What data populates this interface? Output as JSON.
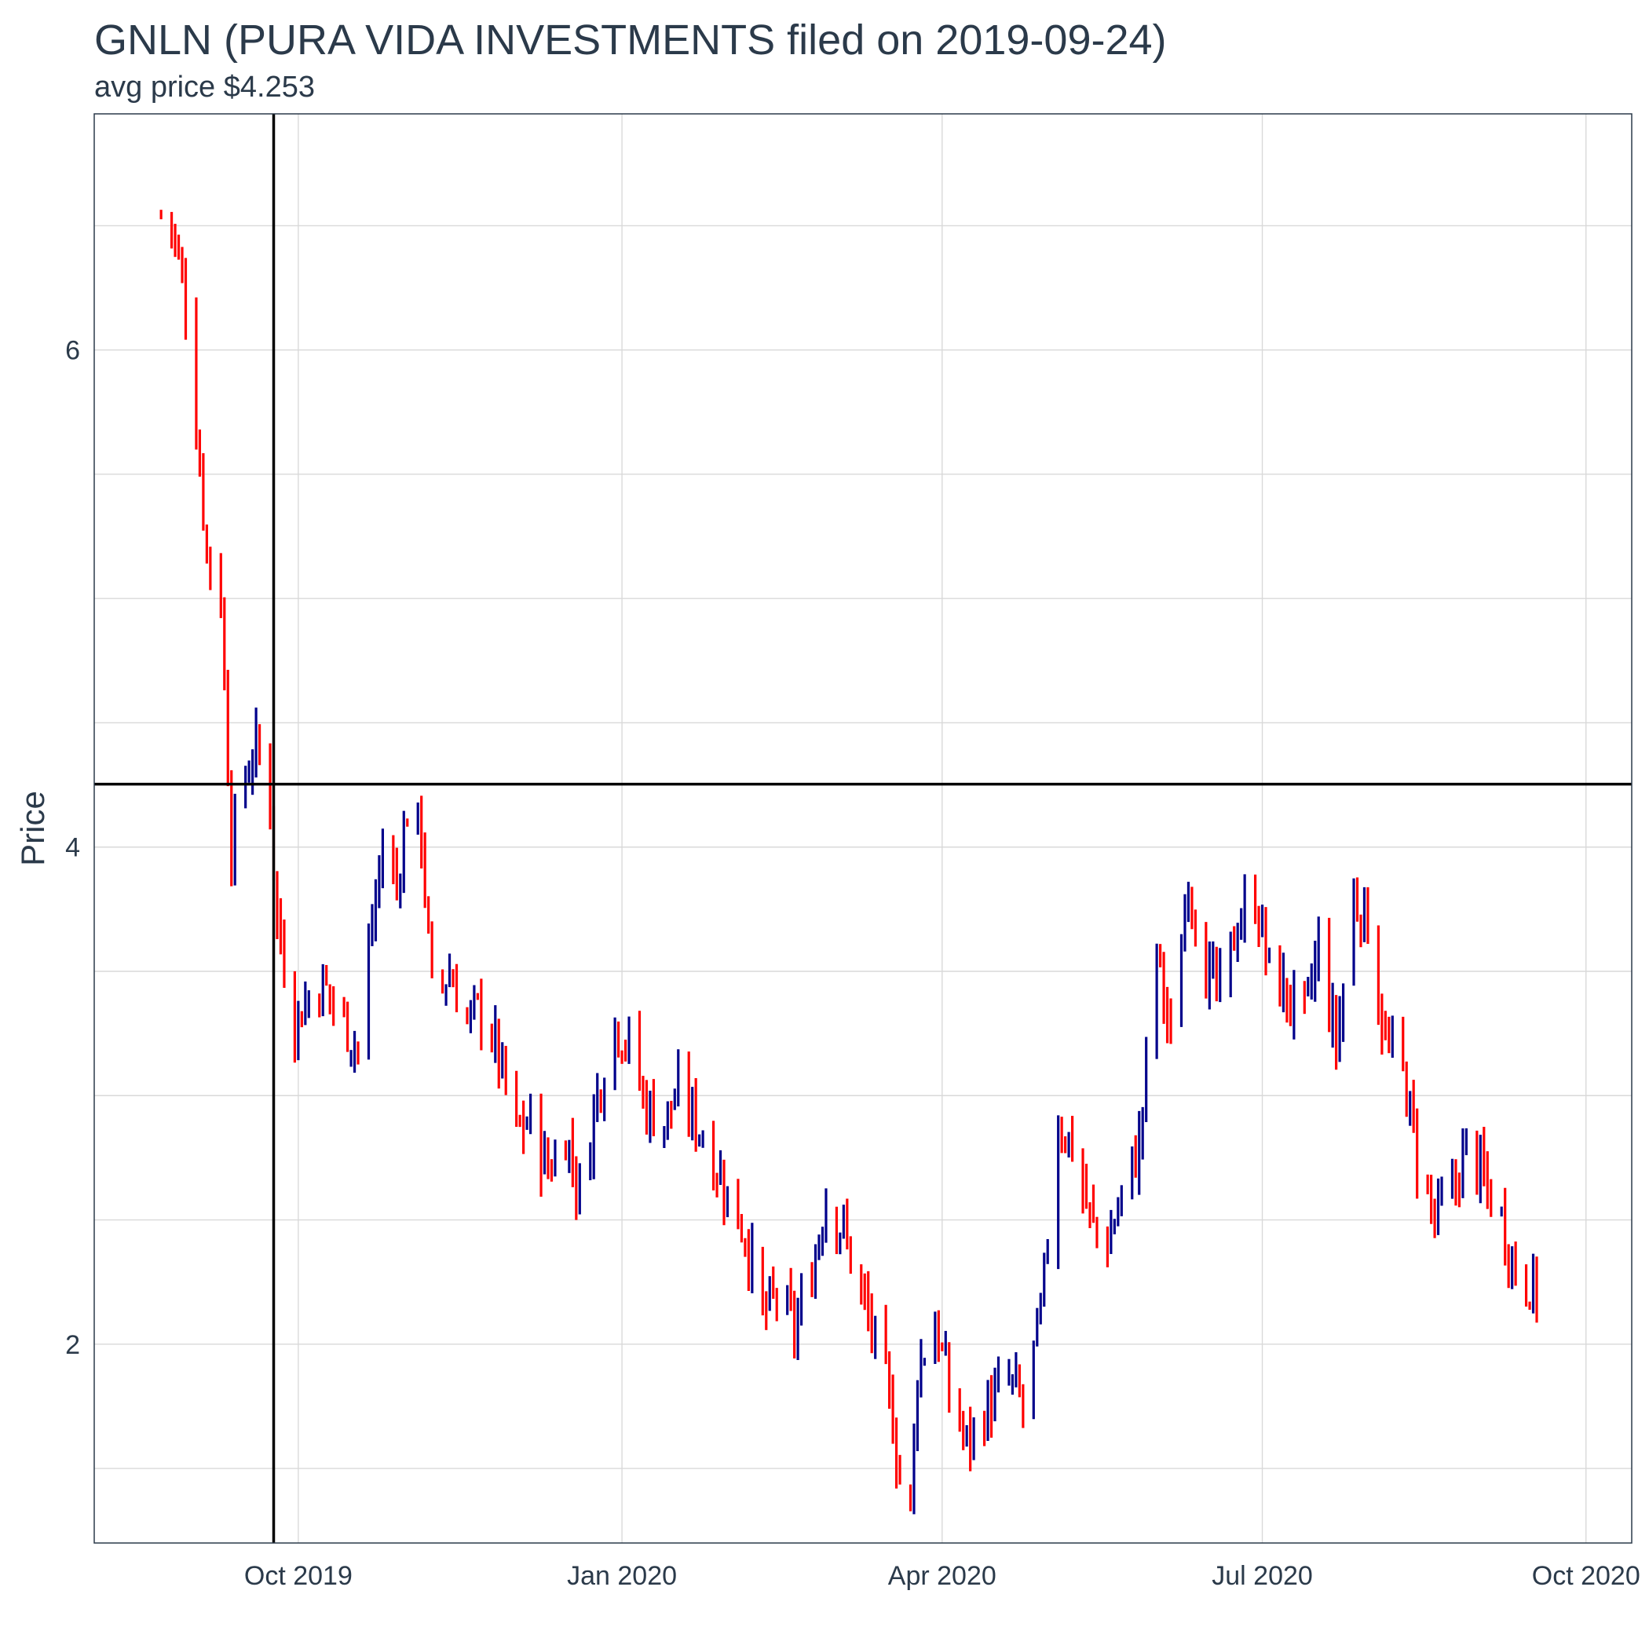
{
  "chart_data": {
    "type": "ohlc",
    "title": "GNLN (PURA VIDA INVESTMENTS filed on 2019-09-24)",
    "subtitle": "avg price $4.253",
    "xlabel": "",
    "ylabel": "Price",
    "x_ticks": [
      "Oct 2019",
      "Jan 2020",
      "Apr 2020",
      "Jul 2020",
      "Oct 2020"
    ],
    "x_tick_dates": [
      "2019-10-01",
      "2020-01-01",
      "2020-04-01",
      "2020-07-01",
      "2020-10-01"
    ],
    "y_ticks": [
      2,
      4,
      6
    ],
    "xlim": [
      "2019-08-04",
      "2020-10-14"
    ],
    "ylim": [
      1.2,
      6.95
    ],
    "grid": true,
    "reference_lines": {
      "filing_date": "2019-09-24",
      "avg_price": 4.253
    },
    "colors": {
      "up": "#00008b",
      "down": "#ff0000",
      "reference": "#000000",
      "grid": "#d9d9d9",
      "panel_border": "#2b3a4a"
    },
    "close_path": [
      [
        "2019-08-23",
        6.55
      ],
      [
        "2019-08-26",
        6.5
      ],
      [
        "2019-08-30",
        6.2
      ],
      [
        "2019-09-05",
        5.2
      ],
      [
        "2019-09-09",
        5.0
      ],
      [
        "2019-09-12",
        4.0
      ],
      [
        "2019-09-16",
        4.3
      ],
      [
        "2019-09-19",
        4.4
      ],
      [
        "2019-09-23",
        4.2
      ],
      [
        "2019-09-25",
        3.7
      ],
      [
        "2019-09-30",
        3.3
      ],
      [
        "2019-10-04",
        3.4
      ],
      [
        "2019-10-08",
        3.45
      ],
      [
        "2019-10-14",
        3.3
      ],
      [
        "2019-10-18",
        3.2
      ],
      [
        "2019-10-22",
        3.7
      ],
      [
        "2019-10-25",
        4.0
      ],
      [
        "2019-10-29",
        3.85
      ],
      [
        "2019-11-01",
        4.15
      ],
      [
        "2019-11-05",
        4.05
      ],
      [
        "2019-11-08",
        3.4
      ],
      [
        "2019-11-13",
        3.5
      ],
      [
        "2019-11-18",
        3.3
      ],
      [
        "2019-11-22",
        3.35
      ],
      [
        "2019-11-26",
        3.2
      ],
      [
        "2019-12-02",
        2.85
      ],
      [
        "2019-12-06",
        2.9
      ],
      [
        "2019-12-11",
        2.7
      ],
      [
        "2019-12-16",
        2.85
      ],
      [
        "2019-12-20",
        2.6
      ],
      [
        "2019-12-24",
        2.95
      ],
      [
        "2019-12-30",
        3.3
      ],
      [
        "2020-01-03",
        3.2
      ],
      [
        "2020-01-08",
        2.95
      ],
      [
        "2020-01-13",
        2.9
      ],
      [
        "2020-01-17",
        3.0
      ],
      [
        "2020-01-22",
        2.9
      ],
      [
        "2020-01-27",
        2.75
      ],
      [
        "2020-01-31",
        2.6
      ],
      [
        "2020-02-05",
        2.45
      ],
      [
        "2020-02-10",
        2.1
      ],
      [
        "2020-02-14",
        2.2
      ],
      [
        "2020-02-19",
        2.05
      ],
      [
        "2020-02-24",
        2.3
      ],
      [
        "2020-02-28",
        2.6
      ],
      [
        "2020-03-04",
        2.45
      ],
      [
        "2020-03-09",
        2.2
      ],
      [
        "2020-03-13",
        2.0
      ],
      [
        "2020-03-18",
        1.7
      ],
      [
        "2020-03-20",
        1.45
      ],
      [
        "2020-03-23",
        1.35
      ],
      [
        "2020-03-25",
        1.9
      ],
      [
        "2020-03-30",
        2.1
      ],
      [
        "2020-04-03",
        1.8
      ],
      [
        "2020-04-08",
        1.6
      ],
      [
        "2020-04-14",
        1.75
      ],
      [
        "2020-04-20",
        1.85
      ],
      [
        "2020-04-24",
        1.75
      ],
      [
        "2020-04-29",
        2.1
      ],
      [
        "2020-05-04",
        2.9
      ],
      [
        "2020-05-08",
        2.8
      ],
      [
        "2020-05-13",
        2.5
      ],
      [
        "2020-05-18",
        2.4
      ],
      [
        "2020-05-22",
        2.6
      ],
      [
        "2020-05-27",
        2.8
      ],
      [
        "2020-06-01",
        3.6
      ],
      [
        "2020-06-05",
        3.2
      ],
      [
        "2020-06-10",
        3.9
      ],
      [
        "2020-06-15",
        3.5
      ],
      [
        "2020-06-19",
        3.4
      ],
      [
        "2020-06-24",
        3.7
      ],
      [
        "2020-06-29",
        3.8
      ],
      [
        "2020-07-03",
        3.5
      ],
      [
        "2020-07-08",
        3.4
      ],
      [
        "2020-07-13",
        3.3
      ],
      [
        "2020-07-17",
        3.6
      ],
      [
        "2020-07-22",
        3.2
      ],
      [
        "2020-07-27",
        3.8
      ],
      [
        "2020-07-31",
        3.7
      ],
      [
        "2020-08-05",
        3.2
      ],
      [
        "2020-08-10",
        3.1
      ],
      [
        "2020-08-14",
        2.75
      ],
      [
        "2020-08-19",
        2.5
      ],
      [
        "2020-08-24",
        2.6
      ],
      [
        "2020-08-28",
        2.8
      ],
      [
        "2020-09-02",
        2.65
      ],
      [
        "2020-09-07",
        2.5
      ],
      [
        "2020-09-11",
        2.3
      ],
      [
        "2020-09-15",
        2.25
      ],
      [
        "2020-09-17",
        2.2
      ]
    ]
  }
}
